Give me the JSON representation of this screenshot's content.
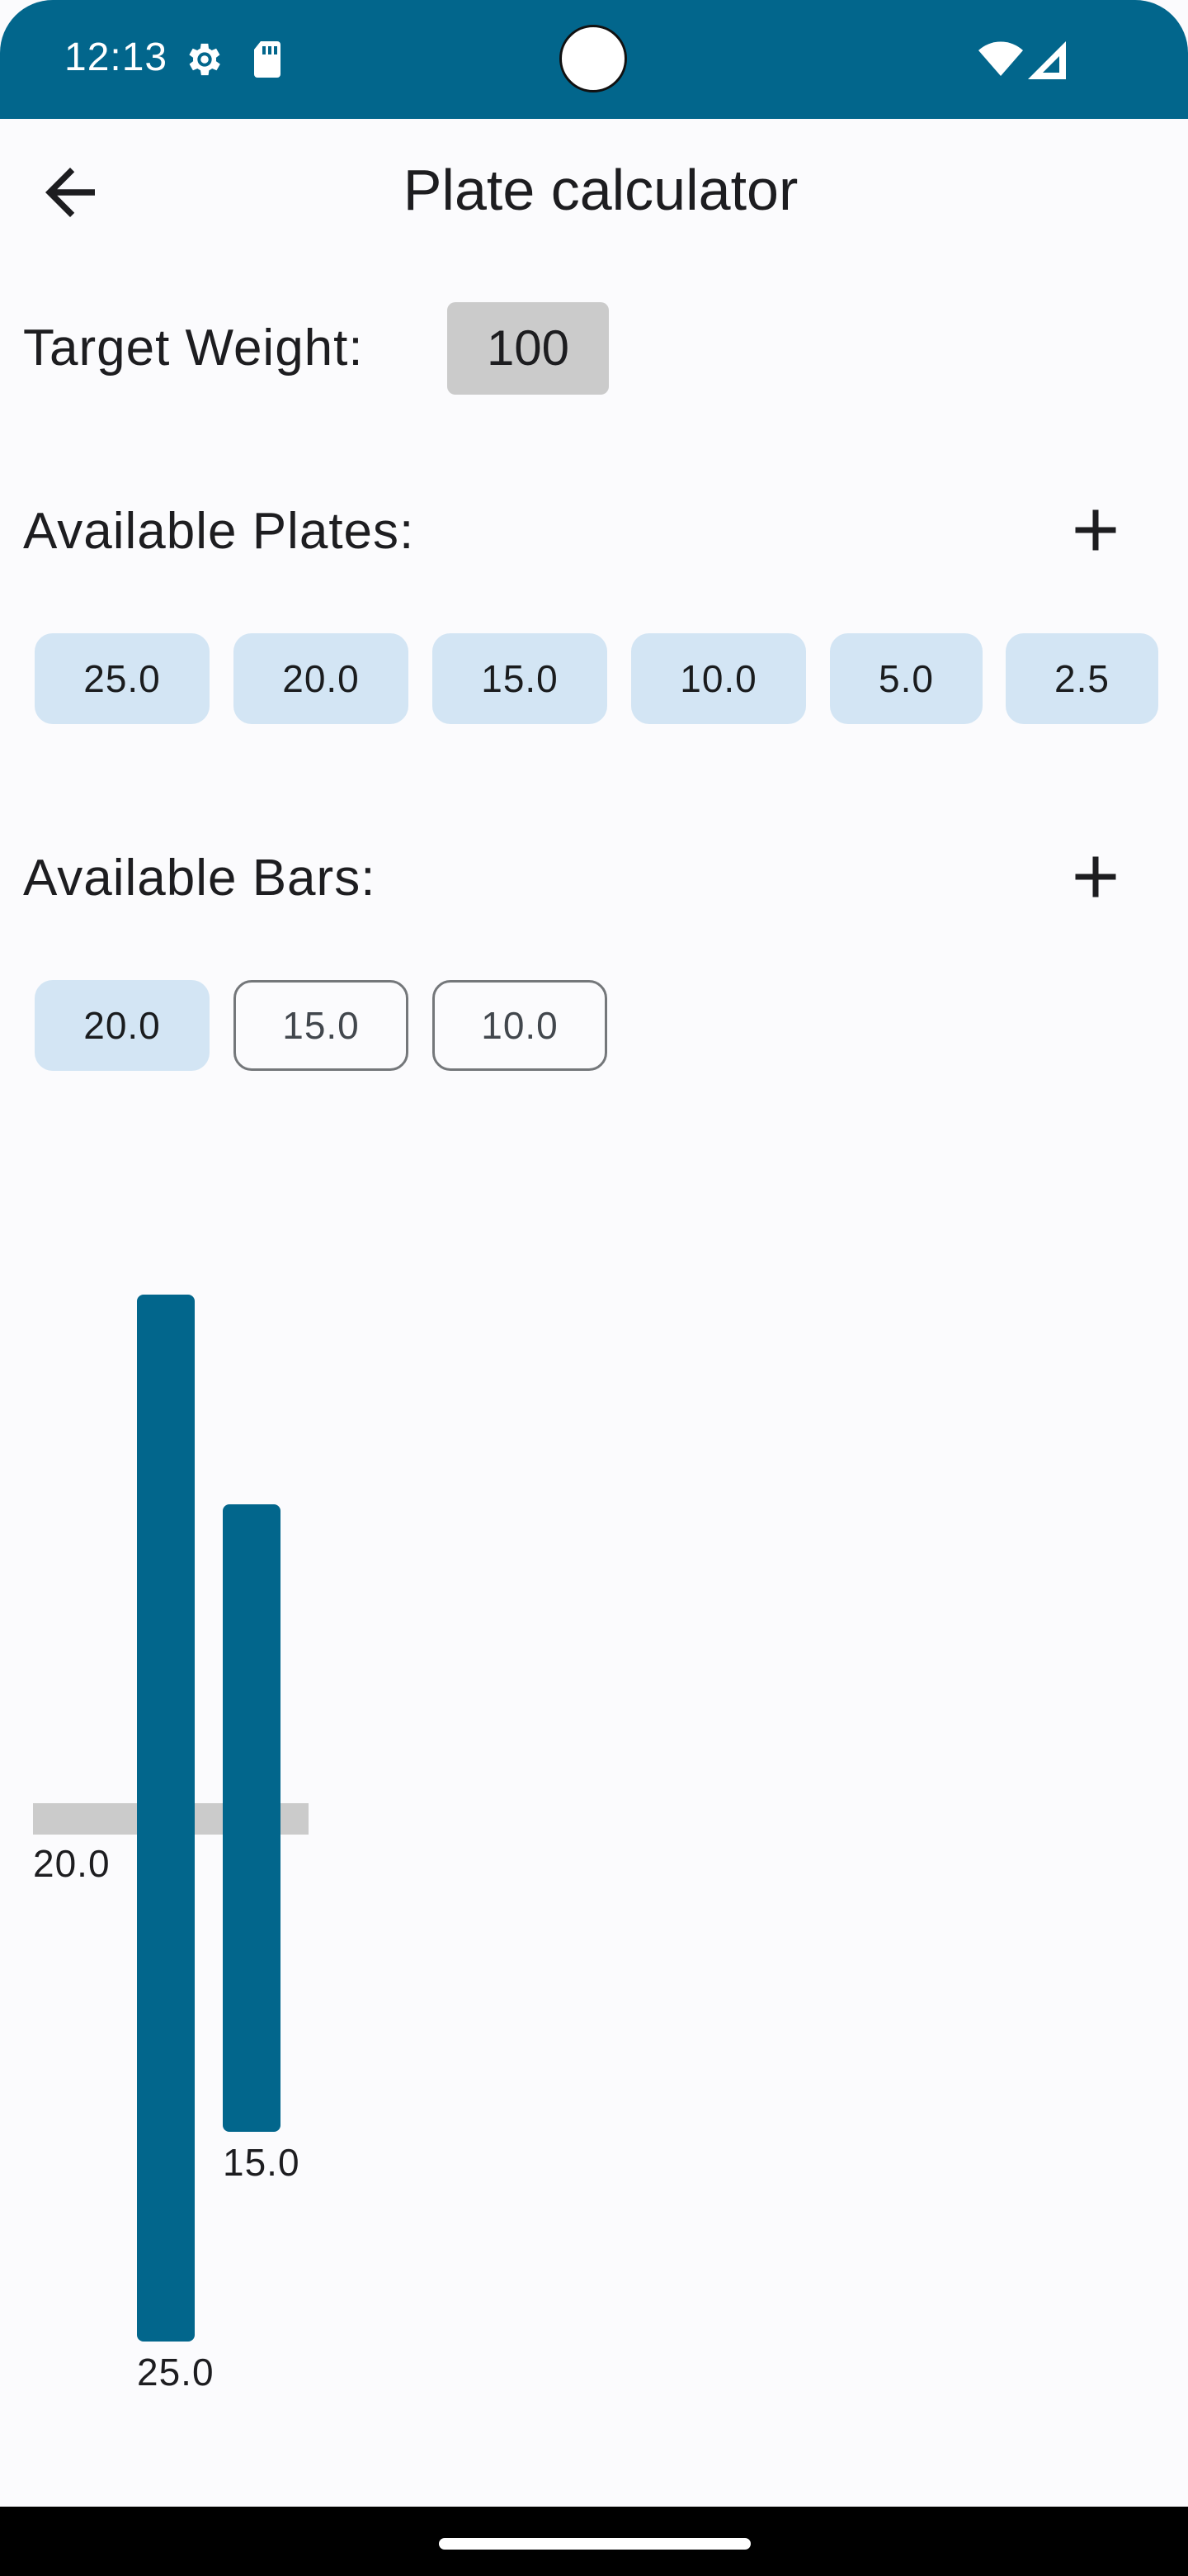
{
  "status_bar": {
    "time": "12:13",
    "icons": [
      "settings-icon",
      "sd-card-icon",
      "wifi-icon",
      "cell-signal-icon"
    ]
  },
  "app_bar": {
    "title": "Plate calculator",
    "back_icon": "arrow-back-icon"
  },
  "target_weight": {
    "label": "Target Weight:",
    "value": "100"
  },
  "plates": {
    "label": "Available Plates:",
    "add_icon": "plus-icon",
    "items": [
      {
        "label": "25.0",
        "selected": true
      },
      {
        "label": "20.0",
        "selected": true
      },
      {
        "label": "15.0",
        "selected": true
      },
      {
        "label": "10.0",
        "selected": true
      },
      {
        "label": "5.0",
        "selected": true
      },
      {
        "label": "2.5",
        "selected": true
      }
    ]
  },
  "bars": {
    "label": "Available Bars:",
    "add_icon": "plus-icon",
    "items": [
      {
        "label": "20.0",
        "selected": true
      },
      {
        "label": "15.0",
        "selected": false
      },
      {
        "label": "10.0",
        "selected": false
      }
    ]
  },
  "visualization": {
    "bar_label": "20.0",
    "plates": [
      {
        "label": "25.0"
      },
      {
        "label": "15.0"
      }
    ]
  },
  "colors": {
    "primary": "#02668c",
    "chip_selected": "#d3e5f4",
    "bar_grey": "#cbcbcb",
    "background": "#fbfbfd"
  }
}
